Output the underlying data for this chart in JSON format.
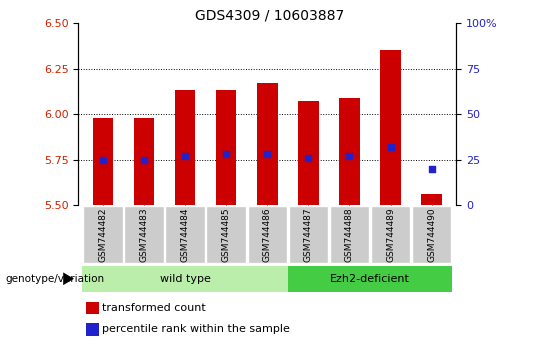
{
  "title": "GDS4309 / 10603887",
  "samples": [
    "GSM744482",
    "GSM744483",
    "GSM744484",
    "GSM744485",
    "GSM744486",
    "GSM744487",
    "GSM744488",
    "GSM744489",
    "GSM744490"
  ],
  "transformed_counts": [
    5.98,
    5.98,
    6.13,
    6.13,
    6.17,
    6.07,
    6.09,
    6.35,
    5.56
  ],
  "percentile_ranks": [
    25,
    25,
    27,
    28,
    28,
    26,
    27,
    32,
    20
  ],
  "bar_bottom": 5.5,
  "ylim_left": [
    5.5,
    6.5
  ],
  "ylim_right": [
    0,
    100
  ],
  "yticks_left": [
    5.5,
    5.75,
    6.0,
    6.25,
    6.5
  ],
  "yticks_right": [
    0,
    25,
    50,
    75,
    100
  ],
  "grid_values": [
    5.75,
    6.0,
    6.25
  ],
  "bar_color": "#CC0000",
  "percentile_color": "#2222CC",
  "wild_type_label": "wild type",
  "ezh2_label": "Ezh2-deficient",
  "genotype_label": "genotype/variation",
  "legend_transformed": "transformed count",
  "legend_percentile": "percentile rank within the sample",
  "wild_type_color": "#BBEEAA",
  "ezh2_color": "#44CC44",
  "tick_label_color_left": "#CC2200",
  "tick_label_color_right": "#2222CC",
  "bar_width": 0.5,
  "n_wild": 5,
  "n_total": 9
}
